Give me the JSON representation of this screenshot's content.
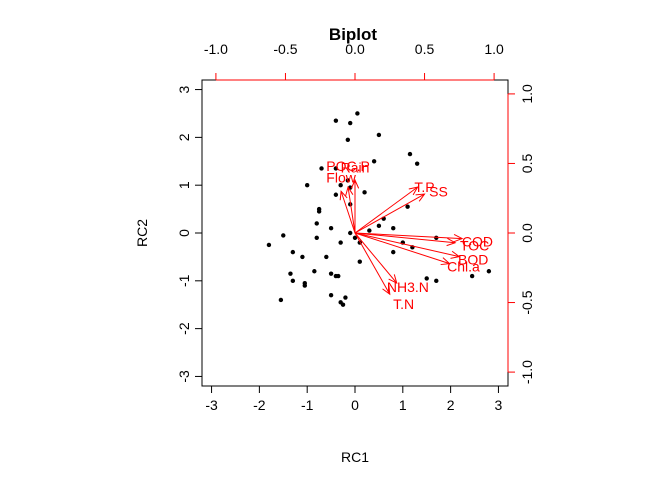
{
  "chart_data": {
    "type": "scatter",
    "title": "Biplot",
    "xlabel": "RC1",
    "ylabel": "RC2",
    "xlim": [
      -3.2,
      3.2
    ],
    "ylim": [
      -3.2,
      3.2
    ],
    "xticks": [
      -3,
      -2,
      -1,
      0,
      1,
      2,
      3
    ],
    "yticks": [
      -3,
      -2,
      -1,
      0,
      1,
      2,
      3
    ],
    "loading_xlim": [
      -1.1,
      1.1
    ],
    "loading_ylim": [
      -1.1,
      1.1
    ],
    "loading_xticks": [
      "-1.0",
      "-0.5",
      "0.0",
      "0.5",
      "1.0"
    ],
    "loading_yticks": [
      "-1.0",
      "-0.5",
      "0.0",
      "0.5",
      "1.0"
    ],
    "grid": false,
    "colors": {
      "points": "#000000",
      "arrows": "#ff0000",
      "frame": "#000000",
      "secondary_axes": "#ff0000"
    },
    "points": [
      {
        "x": 0.05,
        "y": 2.5
      },
      {
        "x": -0.4,
        "y": 2.35
      },
      {
        "x": -0.1,
        "y": 2.3
      },
      {
        "x": 0.5,
        "y": 2.05
      },
      {
        "x": -0.15,
        "y": 1.95
      },
      {
        "x": 1.15,
        "y": 1.65
      },
      {
        "x": 0.4,
        "y": 1.5
      },
      {
        "x": 1.3,
        "y": 1.45
      },
      {
        "x": -0.4,
        "y": 1.35
      },
      {
        "x": -0.7,
        "y": 1.35
      },
      {
        "x": -0.15,
        "y": 1.1
      },
      {
        "x": -1.0,
        "y": 1.0
      },
      {
        "x": -0.3,
        "y": 1.0
      },
      {
        "x": -0.1,
        "y": 0.95
      },
      {
        "x": -0.1,
        "y": 0.6
      },
      {
        "x": 0.2,
        "y": 0.85
      },
      {
        "x": -0.4,
        "y": 0.8
      },
      {
        "x": 1.1,
        "y": 0.55
      },
      {
        "x": -0.75,
        "y": 0.5
      },
      {
        "x": -0.75,
        "y": 0.45
      },
      {
        "x": 0.6,
        "y": 0.3
      },
      {
        "x": 0.8,
        "y": 0.1
      },
      {
        "x": -0.8,
        "y": 0.2
      },
      {
        "x": 0.5,
        "y": 0.15
      },
      {
        "x": -1.5,
        "y": -0.05
      },
      {
        "x": -0.5,
        "y": 0.1
      },
      {
        "x": 0.3,
        "y": 0.05
      },
      {
        "x": -0.1,
        "y": 0.0
      },
      {
        "x": 1.7,
        "y": -0.1
      },
      {
        "x": -0.8,
        "y": -0.1
      },
      {
        "x": 0.0,
        "y": -0.1
      },
      {
        "x": 0.1,
        "y": -0.2
      },
      {
        "x": -0.3,
        "y": -0.2
      },
      {
        "x": 1.0,
        "y": -0.2
      },
      {
        "x": 1.2,
        "y": -0.3
      },
      {
        "x": -1.8,
        "y": -0.25
      },
      {
        "x": 0.8,
        "y": -0.4
      },
      {
        "x": -1.3,
        "y": -0.4
      },
      {
        "x": -1.1,
        "y": -0.5
      },
      {
        "x": -0.6,
        "y": -0.5
      },
      {
        "x": 0.1,
        "y": -0.6
      },
      {
        "x": 2.8,
        "y": -0.8
      },
      {
        "x": -0.85,
        "y": -0.8
      },
      {
        "x": -0.5,
        "y": -0.85
      },
      {
        "x": -1.35,
        "y": -0.85
      },
      {
        "x": -0.4,
        "y": -0.9
      },
      {
        "x": -0.35,
        "y": -0.9
      },
      {
        "x": 1.5,
        "y": -0.95
      },
      {
        "x": -1.3,
        "y": -1.0
      },
      {
        "x": 1.7,
        "y": -1.0
      },
      {
        "x": -1.05,
        "y": -1.05
      },
      {
        "x": -1.05,
        "y": -1.1
      },
      {
        "x": -0.5,
        "y": -1.3
      },
      {
        "x": -0.2,
        "y": -1.35
      },
      {
        "x": -1.55,
        "y": -1.4
      },
      {
        "x": -0.3,
        "y": -1.45
      },
      {
        "x": -0.25,
        "y": -1.5
      },
      {
        "x": 2.45,
        "y": -0.9
      }
    ],
    "loadings": [
      {
        "name": "Rain",
        "x": 0.0,
        "y": 0.38,
        "label_x": 0.0,
        "label_y": 0.47
      },
      {
        "name": "POC.P",
        "x": -0.05,
        "y": 0.33,
        "label_x": -0.05,
        "label_y": 0.48
      },
      {
        "name": "Flow",
        "x": -0.1,
        "y": 0.3,
        "label_x": -0.1,
        "label_y": 0.4
      },
      {
        "name": "T.P",
        "x": 0.45,
        "y": 0.33,
        "label_x": 0.5,
        "label_y": 0.33
      },
      {
        "name": "SS",
        "x": 0.5,
        "y": 0.28,
        "label_x": 0.6,
        "label_y": 0.3
      },
      {
        "name": "COD",
        "x": 0.77,
        "y": -0.04,
        "label_x": 0.88,
        "label_y": -0.06
      },
      {
        "name": "TOC",
        "x": 0.72,
        "y": -0.07,
        "label_x": 0.86,
        "label_y": -0.09
      },
      {
        "name": "BOD",
        "x": 0.75,
        "y": -0.17,
        "label_x": 0.85,
        "label_y": -0.19
      },
      {
        "name": "Chl.a",
        "x": 0.68,
        "y": -0.22,
        "label_x": 0.78,
        "label_y": -0.24
      },
      {
        "name": "NH3.N",
        "x": 0.3,
        "y": -0.36,
        "label_x": 0.38,
        "label_y": -0.39
      },
      {
        "name": "T.N",
        "x": 0.25,
        "y": -0.44,
        "label_x": 0.35,
        "label_y": -0.51
      }
    ]
  }
}
